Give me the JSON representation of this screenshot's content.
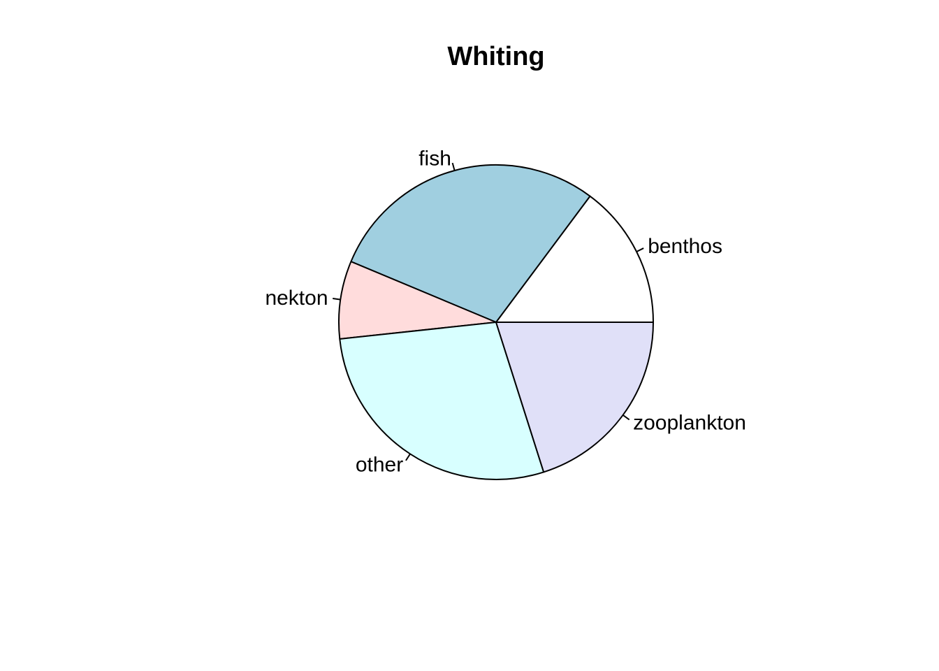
{
  "chart_data": {
    "type": "pie",
    "title": "Whiting",
    "start_angle_deg": 0,
    "direction": "counterclockwise",
    "slices": [
      {
        "label": "benthos",
        "value": 0.148,
        "color": "#ffffff"
      },
      {
        "label": "fish",
        "value": 0.289,
        "color": "#a0cfe0"
      },
      {
        "label": "nekton",
        "value": 0.08,
        "color": "#ffdcdc"
      },
      {
        "label": "other",
        "value": 0.282,
        "color": "#d8ffff"
      },
      {
        "label": "zooplankton",
        "value": 0.201,
        "color": "#e0e0f8"
      }
    ]
  }
}
